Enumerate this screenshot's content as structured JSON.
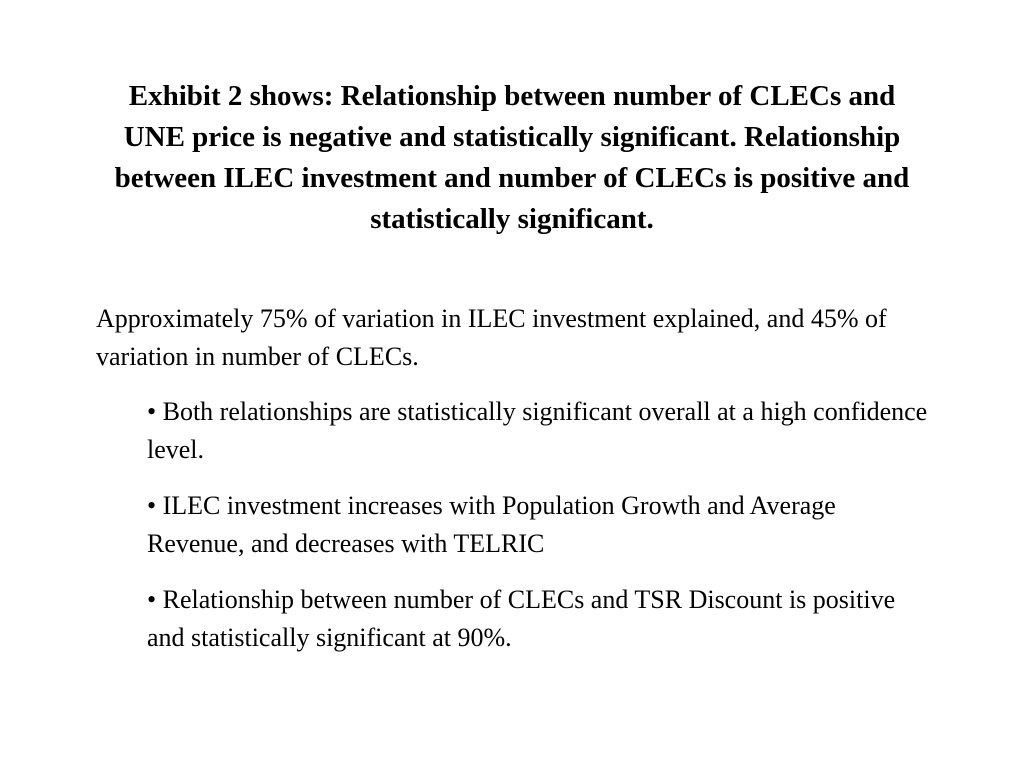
{
  "title": "Exhibit 2 shows: Relationship between number of CLECs and UNE price is negative and statistically significant. Relationship between ILEC investment and number of CLECs is positive and statistically significant.",
  "intro": "Approximately 75% of variation in ILEC investment explained, and 45% of variation in number of CLECs.",
  "bullets": [
    "Both relationships are statistically significant overall at a high confidence level.",
    "ILEC investment increases with Population Growth and Average Revenue, and decreases with TELRIC",
    "Relationship between number of CLECs and TSR Discount is positive and statistically significant at 90%."
  ]
}
